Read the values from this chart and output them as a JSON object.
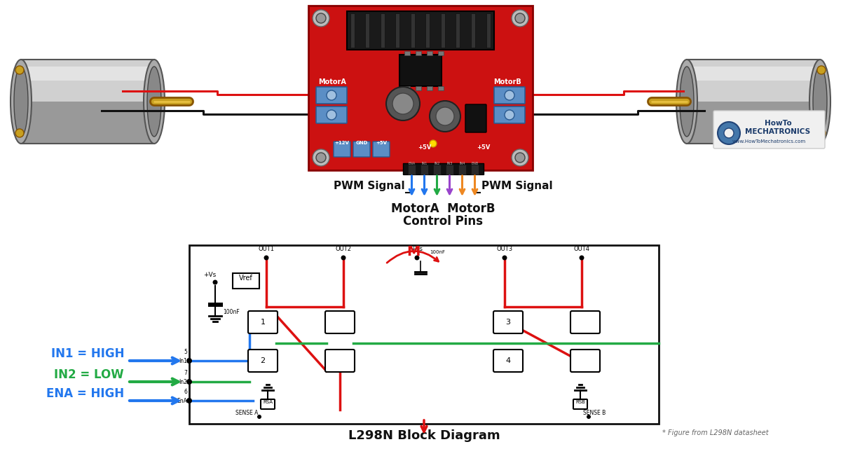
{
  "bg_color": "#ffffff",
  "board_color": "#cc1111",
  "blue_terminal": "#5b8ec5",
  "black": "#111111",
  "red_wire": "#dd1111",
  "motor_gray": "#c0c0c0",
  "motor_dark": "#888888",
  "motor_darker": "#666666",
  "motor_highlight": "#e0e0e0",
  "shaft_gold": "#c8a020",
  "shaft_light": "#e8c040",
  "arrow_blue": "#2277ee",
  "arrow_green": "#22aa44",
  "arrow_purple": "#9944cc",
  "arrow_orange": "#ee8822",
  "red_signal": "#dd1111",
  "green_signal": "#22aa44",
  "blue_signal": "#2277ee",
  "pwm_label": "PWM Signal",
  "motorA_label": "MotorA",
  "motorB_label": "MotorB",
  "control_label_1": "MotorA  MotorB",
  "control_label_2": "Control Pins",
  "block_title": "L298N Block Diagram",
  "in1_label": "IN1 = HIGH",
  "in2_label": "IN2 = LOW",
  "ena_label": "ENA = HIGH",
  "datasheet_note": "* Figure from L298N datasheet"
}
